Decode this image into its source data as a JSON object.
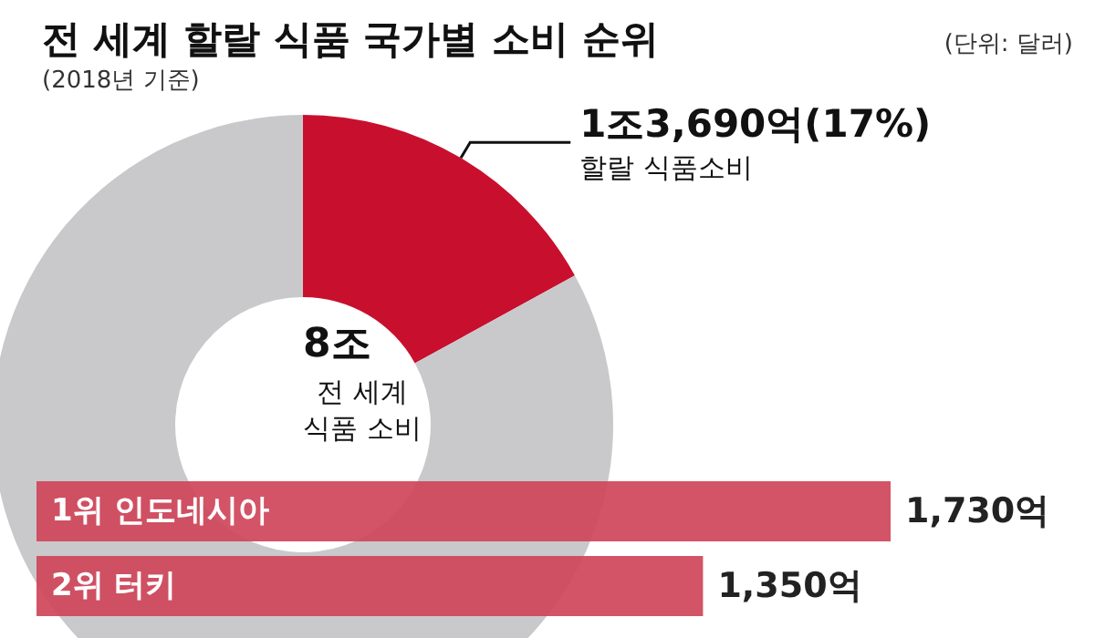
{
  "chart_data": [
    {
      "type": "donut",
      "title": "전 세계 할랄 식품 국가별 소비 순위",
      "subtitle": "(2018년 기준)",
      "categories": [
        "할랄 식품소비",
        null
      ],
      "values": [
        17,
        83
      ],
      "colors": [
        "#c8102e",
        "#c9c9cc"
      ],
      "value_labels": [
        "1조3,690억(17%)",
        null
      ],
      "annotations": [
        "(단위: 달러)",
        "8조",
        "전 세계\n식품 소비"
      ],
      "legend": false
    },
    {
      "type": "bar",
      "orientation": "horizontal",
      "categories": [
        "1위 인도네시아",
        "2위 터키"
      ],
      "values": [
        1730,
        1350
      ],
      "color": "#d0475a",
      "value_labels": [
        "1,730억",
        "1,350억"
      ],
      "legend": false
    }
  ]
}
